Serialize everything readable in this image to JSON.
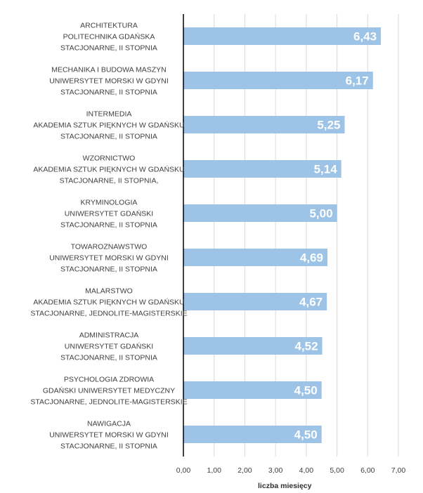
{
  "chart_data": {
    "type": "bar",
    "orientation": "horizontal",
    "categories": [
      [
        "ARCHITEKTURA",
        "POLITECHNIKA GDAŃSKA",
        "STACJONARNE, II STOPNIA"
      ],
      [
        "MECHANIKA I BUDOWA MASZYN",
        "UNIWERSYTET MORSKI W GDYNI",
        "STACJONARNE, II STOPNIA"
      ],
      [
        "INTERMEDIA",
        "AKADEMIA SZTUK PIĘKNYCH W GDAŃSKU",
        "STACJONARNE, II STOPNIA"
      ],
      [
        "WZORNICTWO",
        "AKADEMIA SZTUK PIĘKNYCH W GDAŃSKU",
        "STACJONARNE, II STOPNIA,"
      ],
      [
        "KRYMINOLOGIA",
        "UNIWERSYTET GDAŃSKI",
        "STACJONARNE,  II STOPNIA"
      ],
      [
        "TOWAROZNAWSTWO",
        "UNIWERSYTET MORSKI W GDYNI",
        "STACJONARNE, II STOPNIA"
      ],
      [
        "MALARSTWO",
        "AKADEMIA SZTUK PIĘKNYCH W GDAŃSKU",
        "STACJONARNE,  JEDNOLITE-MAGISTERSKIE"
      ],
      [
        "ADMINISTRACJA",
        "UNIWERSYTET GDAŃSKI",
        "STACJONARNE, II STOPNIA"
      ],
      [
        "PSYCHOLOGIA ZDROWIA",
        "GDAŃSKI UNIWERSYTET MEDYCZNY",
        "STACJONARNE, JEDNOLITE-MAGISTERSKIE"
      ],
      [
        "NAWIGACJA",
        "UNIWERSYTET MORSKI W GDYNI",
        "STACJONARNE, II STOPNIA"
      ]
    ],
    "values": [
      6.43,
      6.17,
      5.25,
      5.14,
      5.0,
      4.69,
      4.67,
      4.52,
      4.5,
      4.5
    ],
    "value_labels": [
      "6,43",
      "6,17",
      "5,25",
      "5,14",
      "5,00",
      "4,69",
      "4,67",
      "4,52",
      "4,50",
      "4,50"
    ],
    "xlim": [
      0,
      7
    ],
    "ticks": [
      0,
      1,
      2,
      3,
      4,
      5,
      6,
      7
    ],
    "tick_labels": [
      "0,00",
      "1,00",
      "2,00",
      "3,00",
      "4,00",
      "5,00",
      "6,00",
      "7,00"
    ],
    "xlabel": "liczba miesięcy",
    "grid": "vertical",
    "bar_color": "#9dc3e6",
    "grid_color": "#d9d9d9",
    "axis_color": "#000000"
  }
}
